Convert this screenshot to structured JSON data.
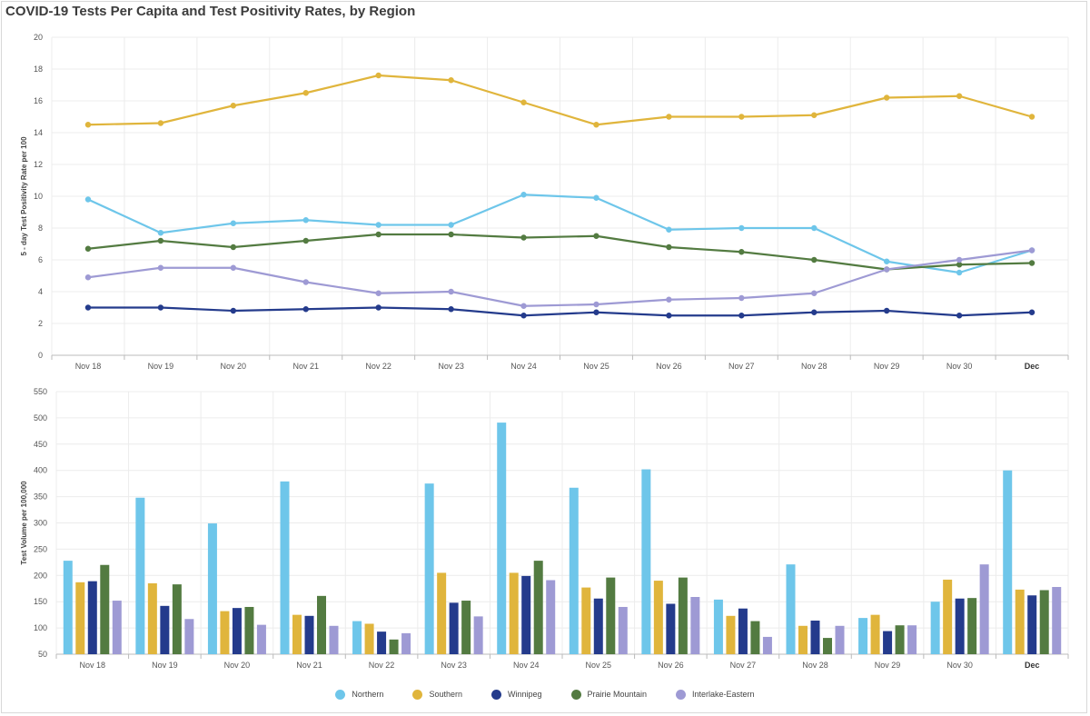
{
  "page": {
    "title": "COVID-19 Tests Per Capita and Test Positivity Rates, by Region"
  },
  "legend": [
    {
      "name": "Northern",
      "color": "#6ec6ea"
    },
    {
      "name": "Southern",
      "color": "#e0b53c"
    },
    {
      "name": "Winnipeg",
      "color": "#243b8c"
    },
    {
      "name": "Prairie Mountain",
      "color": "#537b41"
    },
    {
      "name": "Interlake-Eastern",
      "color": "#9e9ad4"
    }
  ],
  "chart_data": [
    {
      "type": "line",
      "ylabel": "5 - day Test Positivity Rate per 100",
      "ylim": [
        0,
        20
      ],
      "yticks": [
        0,
        2,
        4,
        6,
        8,
        10,
        12,
        14,
        16,
        18,
        20
      ],
      "grid": true,
      "categories": [
        "Nov 18",
        "Nov 19",
        "Nov 20",
        "Nov 21",
        "Nov 22",
        "Nov 23",
        "Nov 24",
        "Nov 25",
        "Nov 26",
        "Nov 27",
        "Nov 28",
        "Nov 29",
        "Nov 30",
        "Dec"
      ],
      "series": [
        {
          "name": "Northern",
          "color": "#6ec6ea",
          "values": [
            9.8,
            7.7,
            8.3,
            8.5,
            8.2,
            8.2,
            10.1,
            9.9,
            7.9,
            8.0,
            8.0,
            5.9,
            5.2,
            6.6
          ]
        },
        {
          "name": "Southern",
          "color": "#e0b53c",
          "values": [
            14.5,
            14.6,
            15.7,
            16.5,
            17.6,
            17.3,
            15.9,
            14.5,
            15.0,
            15.0,
            15.1,
            16.2,
            16.3,
            15.0
          ]
        },
        {
          "name": "Winnipeg",
          "color": "#243b8c",
          "values": [
            3.0,
            3.0,
            2.8,
            2.9,
            3.0,
            2.9,
            2.5,
            2.7,
            2.5,
            2.5,
            2.7,
            2.8,
            2.5,
            2.7
          ]
        },
        {
          "name": "Prairie Mountain",
          "color": "#537b41",
          "values": [
            6.7,
            7.2,
            6.8,
            7.2,
            7.6,
            7.6,
            7.4,
            7.5,
            6.8,
            6.5,
            6.0,
            5.4,
            5.7,
            5.8
          ]
        },
        {
          "name": "Interlake-Eastern",
          "color": "#9e9ad4",
          "values": [
            4.9,
            5.5,
            5.5,
            4.6,
            3.9,
            4.0,
            3.1,
            3.2,
            3.5,
            3.6,
            3.9,
            5.4,
            6.0,
            6.6
          ]
        }
      ]
    },
    {
      "type": "bar",
      "ylabel": "Test Volume per 100,000",
      "ylim": [
        50,
        550
      ],
      "yticks": [
        50,
        100,
        150,
        200,
        250,
        300,
        350,
        400,
        450,
        500,
        550
      ],
      "grid": true,
      "categories": [
        "Nov 18",
        "Nov 19",
        "Nov 20",
        "Nov 21",
        "Nov 22",
        "Nov 23",
        "Nov 24",
        "Nov 25",
        "Nov 26",
        "Nov 27",
        "Nov 28",
        "Nov 29",
        "Nov 30",
        "Dec"
      ],
      "series": [
        {
          "name": "Northern",
          "color": "#6ec6ea",
          "values": [
            228,
            348,
            299,
            379,
            113,
            375,
            491,
            367,
            402,
            154,
            221,
            119,
            150,
            400
          ]
        },
        {
          "name": "Southern",
          "color": "#e0b53c",
          "values": [
            187,
            185,
            132,
            125,
            108,
            205,
            205,
            177,
            190,
            123,
            104,
            125,
            192,
            173
          ]
        },
        {
          "name": "Winnipeg",
          "color": "#243b8c",
          "values": [
            189,
            142,
            138,
            123,
            93,
            148,
            199,
            156,
            146,
            137,
            114,
            94,
            156,
            162
          ]
        },
        {
          "name": "Prairie Mountain",
          "color": "#537b41",
          "values": [
            220,
            183,
            140,
            161,
            78,
            152,
            228,
            196,
            196,
            113,
            81,
            105,
            157,
            172
          ]
        },
        {
          "name": "Interlake-Eastern",
          "color": "#9e9ad4",
          "values": [
            152,
            117,
            106,
            104,
            90,
            122,
            191,
            140,
            159,
            83,
            104,
            105,
            221,
            178
          ]
        }
      ]
    }
  ]
}
